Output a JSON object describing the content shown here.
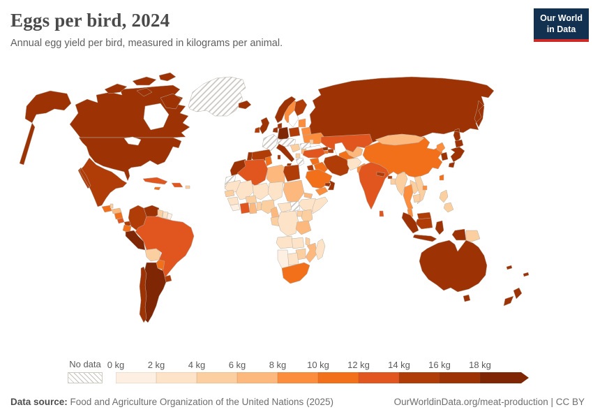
{
  "header": {
    "title": "Eggs per bird, 2024",
    "subtitle": "Annual egg yield per bird, measured in kilograms per animal.",
    "logo_line1": "Our World",
    "logo_line2": "in Data",
    "logo_bg": "#12304f",
    "logo_accent": "#cc2a27"
  },
  "legend": {
    "no_data_label": "No data",
    "bins": [
      {
        "label": "0 kg",
        "color": "#fdf0e2"
      },
      {
        "label": "2 kg",
        "color": "#fde3c8"
      },
      {
        "label": "4 kg",
        "color": "#fbcfa0"
      },
      {
        "label": "6 kg",
        "color": "#fdb97d"
      },
      {
        "label": "8 kg",
        "color": "#fb8d3d"
      },
      {
        "label": "10 kg",
        "color": "#f3701b"
      },
      {
        "label": "12 kg",
        "color": "#e1561f"
      },
      {
        "label": "14 kg",
        "color": "#b03c08"
      },
      {
        "label": "16 kg",
        "color": "#9d3304"
      },
      {
        "label": "18 kg",
        "color": "#7f2704"
      }
    ]
  },
  "footer": {
    "source_label": "Data source:",
    "source_text": " Food and Agriculture Organization of the United Nations (2025)",
    "credit_text": "OurWorldinData.org/meat-production | CC BY"
  },
  "map": {
    "border_color": "#b5aea6",
    "palette": [
      "#fdf0e2",
      "#fde3c8",
      "#fbcfa0",
      "#fdb97d",
      "#fb8d3d",
      "#f3701b",
      "#e1561f",
      "#b03c08",
      "#9d3304",
      "#7f2704"
    ],
    "countries": {
      "greenland": "nodata",
      "canada": 8,
      "usa": 8,
      "mexico": 7,
      "guatemala": 5,
      "belize": 2,
      "honduras": 3,
      "nicaragua": 5,
      "costa-rica": 6,
      "panama": 7,
      "cuba": 6,
      "jamaica": 5,
      "hispaniola": 6,
      "puerto-rico": 2,
      "colombia": 7,
      "venezuela": 8,
      "guyana": 2,
      "suriname": 1,
      "french-guiana": 0,
      "ecuador": 5,
      "peru": 9,
      "brazil": 6,
      "bolivia": 2,
      "paraguay": 5,
      "uruguay": 7,
      "argentina": 9,
      "chile": 8,
      "iceland": 8,
      "ireland": 7,
      "uk": 8,
      "norway": 8,
      "sweden": 4,
      "finland": 7,
      "denmark": 8,
      "baltic-states": 4,
      "belarus": 4,
      "poland": 7,
      "germany": 9,
      "benelux": 8,
      "france": "nodata",
      "central-europe": "nodata",
      "italy": 8,
      "spain": 7,
      "portugal": 8,
      "balkans-west": 2,
      "albania": 2,
      "greece": "nodata",
      "romania": "nodata",
      "bulgaria": 3,
      "moldova": 2,
      "ukraine": 4,
      "russia": 8,
      "turkey": 6,
      "syria": 5,
      "iraq": 5,
      "iran": 7,
      "israel-jordan": 7,
      "saudi-arabia": 5,
      "yemen": 4,
      "oman": 8,
      "uae": 8,
      "kuwait": 7,
      "georgia": 8,
      "azerbaijan": 7,
      "armenia": 5,
      "kazakhstan": 6,
      "uzbekistan": 3,
      "turkmenistan": 5,
      "kyrgyzstan": 5,
      "tajikistan": 3,
      "afghanistan": 1,
      "pakistan": 4,
      "india": 6,
      "nepal": 7,
      "bhutan": 7,
      "bangladesh": 2,
      "sri-lanka": 6,
      "china": 5,
      "mongolia": 3,
      "north-korea": 4,
      "south-korea": 8,
      "japan": 8,
      "taiwan": 5,
      "hainan": 4,
      "myanmar": 2,
      "thailand": 4,
      "laos": 2,
      "vietnam": 2,
      "cambodia": 2,
      "malaysia-peninsula": 4,
      "malaysia-borneo": 7,
      "kalimantan": 7,
      "sumatra": 8,
      "java": 8,
      "sulawesi": 8,
      "papua-indonesia": 8,
      "png": 2,
      "philippines": 2,
      "morocco": 8,
      "western-sahara": "nodata",
      "algeria": 6,
      "tunisia": 5,
      "libya": 3,
      "egypt": 7,
      "mauritania": 1,
      "mali": 1,
      "niger": 1,
      "chad": 1,
      "sudan": 3,
      "south-sudan": "nodata",
      "eritrea": 3,
      "ethiopia": 1,
      "somalia": 1,
      "senegal": 2,
      "guinea": 1,
      "sierra-leone": 0,
      "cote-divoire": 6,
      "ghana": 3,
      "togo-benin": 2,
      "burkina-faso": 2,
      "nigeria": 2,
      "cameroon": 3,
      "central-african-republic": 1,
      "congo": 2,
      "drc": 1,
      "uganda": 2,
      "kenya": 2,
      "tanzania": 3,
      "angola": 1,
      "zambia": 1,
      "malawi": 2,
      "mozambique": 3,
      "zimbabwe": 2,
      "botswana": 1,
      "namibia": 0,
      "south-africa": 5,
      "madagascar": 1,
      "australia": 8,
      "new-zealand": 8,
      "fiji": 8,
      "new-caledonia": 8
    }
  },
  "chart_data": {
    "type": "heatmap",
    "subtype": "choropleth-world-map",
    "title": "Eggs per bird, 2024",
    "subtitle": "Annual egg yield per bird, measured in kilograms per animal.",
    "unit": "kg per animal",
    "legend_bins": [
      "0-2 kg",
      "2-4 kg",
      "4-6 kg",
      "6-8 kg",
      "8-10 kg",
      "10-12 kg",
      "12-14 kg",
      "14-16 kg",
      "16-18 kg",
      "18+ kg",
      "No data"
    ],
    "regions": {
      "Canada": "16-18 kg",
      "United States": "16-18 kg",
      "Greenland": "No data",
      "Mexico": "14-16 kg",
      "Guatemala": "10-12 kg",
      "Belize": "4-6 kg",
      "Honduras": "6-8 kg",
      "Nicaragua": "10-12 kg",
      "Costa Rica": "12-14 kg",
      "Panama": "14-16 kg",
      "Cuba": "12-14 kg",
      "Jamaica": "10-12 kg",
      "Haiti": "12-14 kg",
      "Dominican Republic": "12-14 kg",
      "Puerto Rico": "4-6 kg",
      "Colombia": "14-16 kg",
      "Venezuela": "16-18 kg",
      "Guyana": "4-6 kg",
      "Suriname": "2-4 kg",
      "French Guiana": "0-2 kg",
      "Ecuador": "10-12 kg",
      "Peru": "18+ kg",
      "Brazil": "12-14 kg",
      "Bolivia": "4-6 kg",
      "Paraguay": "10-12 kg",
      "Uruguay": "14-16 kg",
      "Argentina": "18+ kg",
      "Chile": "16-18 kg",
      "Iceland": "16-18 kg",
      "Ireland": "14-16 kg",
      "United Kingdom": "16-18 kg",
      "Norway": "16-18 kg",
      "Sweden": "8-10 kg",
      "Finland": "14-16 kg",
      "Denmark": "16-18 kg",
      "Lithuania": "8-10 kg",
      "Latvia": "8-10 kg",
      "Estonia": "8-10 kg",
      "Belarus": "8-10 kg",
      "Poland": "14-16 kg",
      "Germany": "18+ kg",
      "Netherlands": "16-18 kg",
      "Belgium": "16-18 kg",
      "France": "No data",
      "Switzerland": "No data",
      "Austria": "No data",
      "Czechia": "No data",
      "Hungary": "No data",
      "Slovakia": "No data",
      "Italy": "16-18 kg",
      "Spain": "14-16 kg",
      "Portugal": "16-18 kg",
      "Serbia": "4-6 kg",
      "Croatia": "4-6 kg",
      "Albania": "4-6 kg",
      "North Macedonia": "4-6 kg",
      "Greece": "No data",
      "Romania": "No data",
      "Bulgaria": "6-8 kg",
      "Moldova": "4-6 kg",
      "Ukraine": "8-10 kg",
      "Russia": "16-18 kg",
      "Turkey": "12-14 kg",
      "Syria": "10-12 kg",
      "Iraq": "10-12 kg",
      "Iran": "14-16 kg",
      "Israel": "14-16 kg",
      "Jordan": "14-16 kg",
      "Saudi Arabia": "10-12 kg",
      "Yemen": "8-10 kg",
      "Oman": "16-18 kg",
      "United Arab Emirates": "16-18 kg",
      "Kuwait": "14-16 kg",
      "Georgia": "16-18 kg",
      "Azerbaijan": "14-16 kg",
      "Armenia": "10-12 kg",
      "Kazakhstan": "12-14 kg",
      "Uzbekistan": "6-8 kg",
      "Turkmenistan": "10-12 kg",
      "Kyrgyzstan": "10-12 kg",
      "Tajikistan": "6-8 kg",
      "Afghanistan": "2-4 kg",
      "Pakistan": "8-10 kg",
      "India": "12-14 kg",
      "Nepal": "14-16 kg",
      "Bhutan": "14-16 kg",
      "Bangladesh": "4-6 kg",
      "Sri Lanka": "12-14 kg",
      "China": "10-12 kg",
      "Mongolia": "6-8 kg",
      "North Korea": "8-10 kg",
      "South Korea": "16-18 kg",
      "Japan": "16-18 kg",
      "Taiwan": "10-12 kg",
      "Myanmar": "4-6 kg",
      "Thailand": "8-10 kg",
      "Laos": "4-6 kg",
      "Vietnam": "4-6 kg",
      "Cambodia": "4-6 kg",
      "Malaysia": "8-10 kg",
      "Indonesia": "16-18 kg",
      "Philippines": "4-6 kg",
      "Papua New Guinea": "4-6 kg",
      "Morocco": "16-18 kg",
      "Western Sahara": "No data",
      "Algeria": "12-14 kg",
      "Tunisia": "10-12 kg",
      "Libya": "6-8 kg",
      "Egypt": "14-16 kg",
      "Mauritania": "2-4 kg",
      "Mali": "2-4 kg",
      "Niger": "2-4 kg",
      "Chad": "2-4 kg",
      "Sudan": "6-8 kg",
      "South Sudan": "No data",
      "Eritrea": "6-8 kg",
      "Ethiopia": "2-4 kg",
      "Somalia": "2-4 kg",
      "Senegal": "4-6 kg",
      "Guinea": "2-4 kg",
      "Sierra Leone": "0-2 kg",
      "Cote d'Ivoire": "12-14 kg",
      "Ghana": "6-8 kg",
      "Burkina Faso": "4-6 kg",
      "Benin": "4-6 kg",
      "Togo": "4-6 kg",
      "Nigeria": "4-6 kg",
      "Cameroon": "6-8 kg",
      "Central African Republic": "2-4 kg",
      "Congo": "4-6 kg",
      "Democratic Republic of Congo": "2-4 kg",
      "Uganda": "4-6 kg",
      "Kenya": "4-6 kg",
      "Tanzania": "6-8 kg",
      "Angola": "2-4 kg",
      "Zambia": "2-4 kg",
      "Malawi": "4-6 kg",
      "Mozambique": "6-8 kg",
      "Zimbabwe": "4-6 kg",
      "Botswana": "2-4 kg",
      "Namibia": "0-2 kg",
      "South Africa": "10-12 kg",
      "Madagascar": "2-4 kg",
      "Australia": "16-18 kg",
      "New Zealand": "16-18 kg",
      "Fiji": "16-18 kg",
      "New Caledonia": "16-18 kg"
    }
  }
}
